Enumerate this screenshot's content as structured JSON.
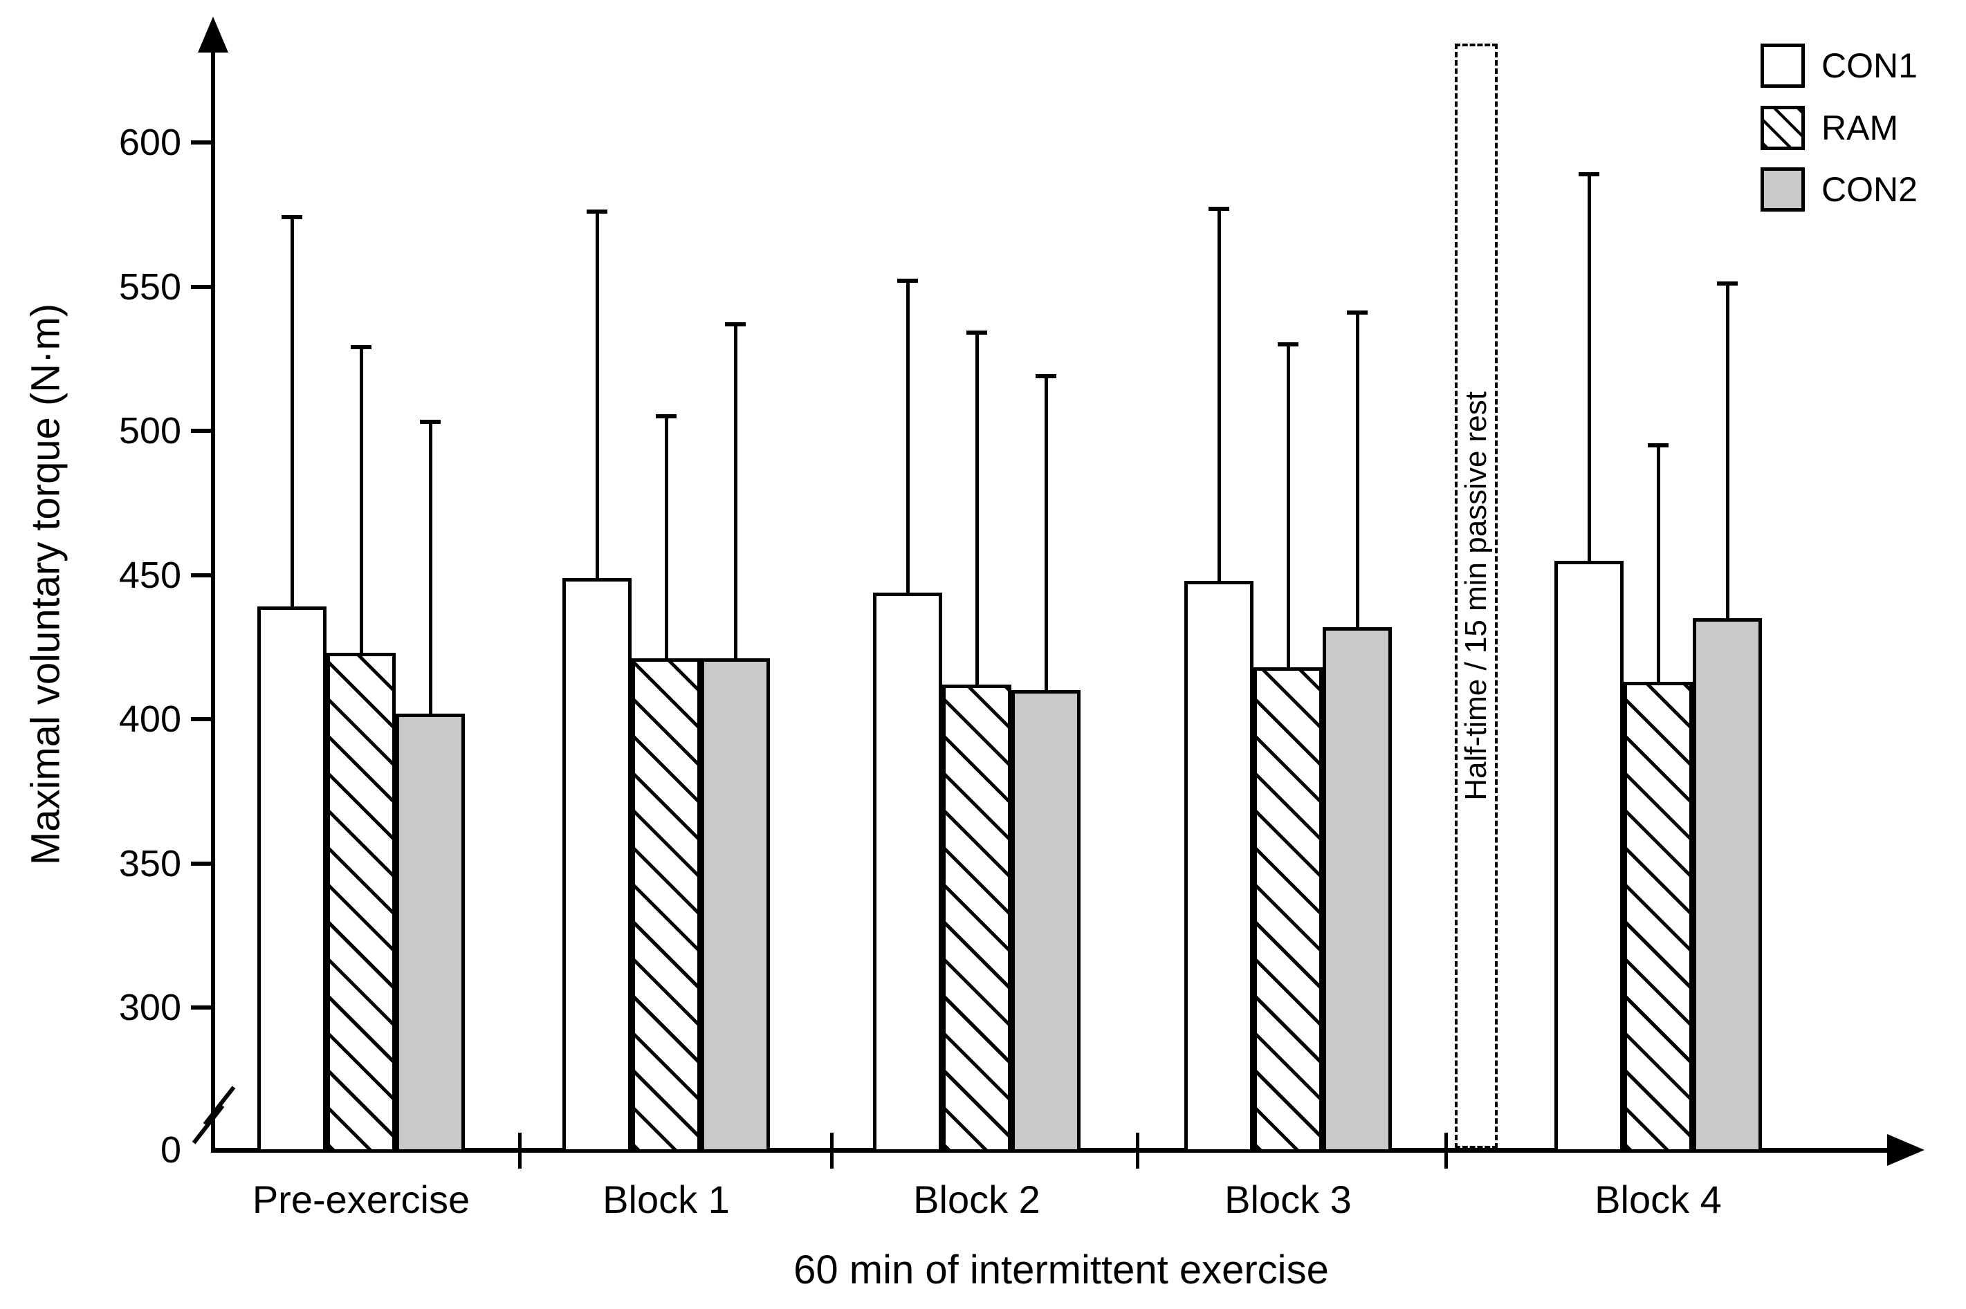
{
  "figure": {
    "ylabel": "Maximal voluntary torque (N·m)",
    "xlabel": "60 min of intermittent exercise",
    "annotation": "Half-time / 15 min passive rest"
  },
  "legend": {
    "position": "top-right",
    "items": [
      {
        "label": "CON1",
        "fill": "white"
      },
      {
        "label": "RAM",
        "fill": "hatch"
      },
      {
        "label": "CON2",
        "fill": "gray"
      }
    ]
  },
  "chart_data": {
    "type": "bar",
    "title": "",
    "xlabel": "60 min of intermittent exercise",
    "ylabel": "Maximal voluntary torque (N·m)",
    "categories": [
      "Pre-exercise",
      "Block 1",
      "Block 2",
      "Block 3",
      "Block 4"
    ],
    "series": [
      {
        "name": "CON1",
        "fill": "white",
        "values": [
          439,
          449,
          444,
          448,
          455
        ],
        "error_tops": [
          574,
          576,
          552,
          577,
          589
        ]
      },
      {
        "name": "RAM",
        "fill": "hatch",
        "values": [
          423,
          421,
          412,
          418,
          413
        ],
        "error_tops": [
          529,
          505,
          534,
          530,
          495
        ]
      },
      {
        "name": "CON2",
        "fill": "gray",
        "values": [
          402,
          421,
          410,
          432,
          435
        ],
        "error_tops": [
          503,
          537,
          519,
          541,
          551
        ]
      }
    ],
    "error_bars": "upper SD whiskers with caps",
    "y_ticks": [
      0,
      300,
      350,
      400,
      450,
      500,
      550,
      600
    ],
    "ylim": [
      0,
      640
    ],
    "axis_break_between": [
      0,
      300
    ],
    "grid": false,
    "legend_position": "top-right",
    "annotation": "Half-time / 15 min passive rest",
    "colors": {
      "bar_gray": "#c9c9c9",
      "line": "#000000",
      "background": "#ffffff"
    }
  }
}
